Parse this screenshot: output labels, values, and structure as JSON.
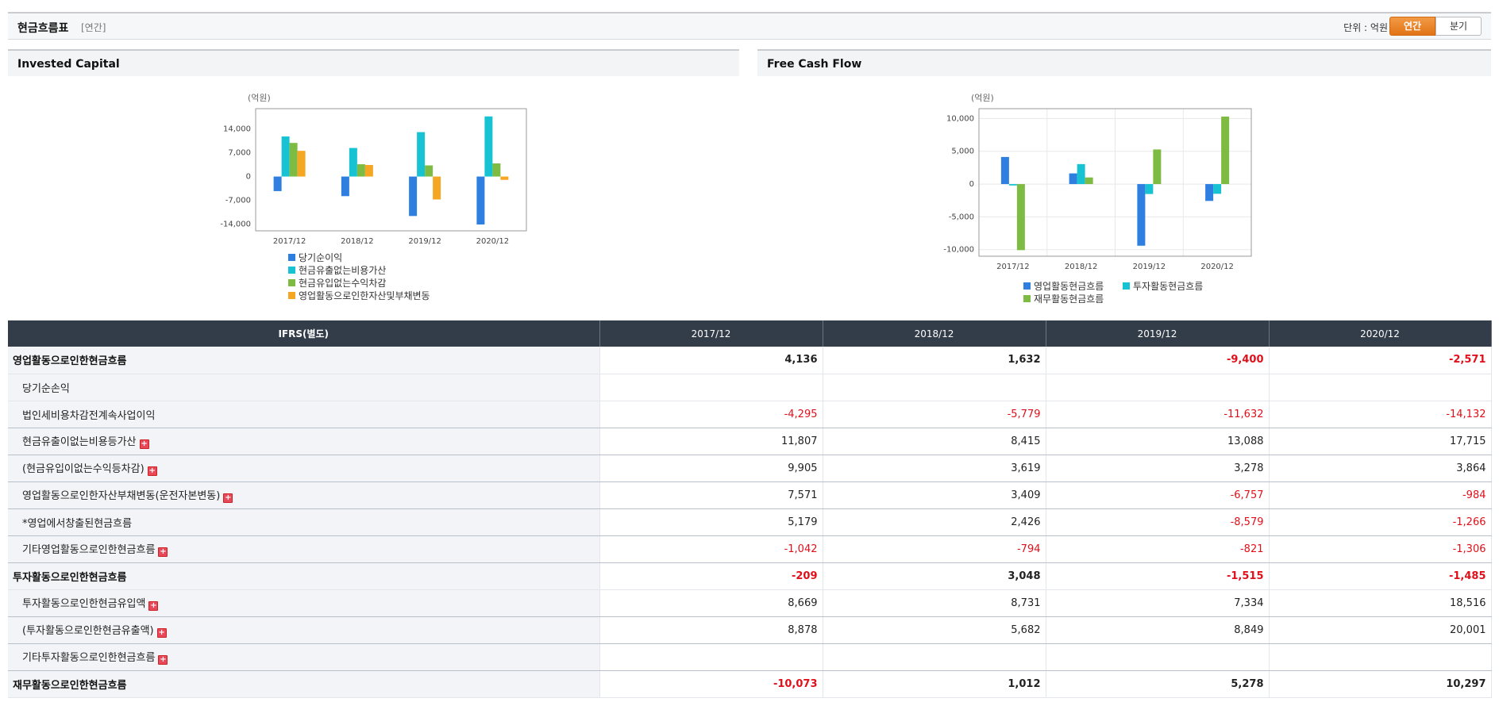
{
  "header": {
    "title": "현금흐름표",
    "subtitle": "[연간]",
    "unit_label": "단위 : 억원",
    "btn_annual": "연간",
    "btn_quarter": "분기"
  },
  "panels": {
    "ic_title": "Invested Capital",
    "fcf_title": "Free Cash Flow"
  },
  "chart_data": [
    {
      "type": "bar",
      "title": "Invested Capital",
      "unit": "(억원)",
      "categories": [
        "2017/12",
        "2018/12",
        "2019/12",
        "2020/12"
      ],
      "ylim": [
        -16000,
        20000
      ],
      "yticks": [
        14000,
        7000,
        0,
        -7000,
        -14000
      ],
      "ytick_labels": [
        "14,000",
        "7,000",
        "0",
        "-7,000",
        "-14,000"
      ],
      "grid": false,
      "legend_position": "bottom",
      "series": [
        {
          "name": "당기순이익",
          "color": "#2f7fe0",
          "values": [
            -4295,
            -5779,
            -11632,
            -14132
          ]
        },
        {
          "name": "현금유출없는비용가산",
          "color": "#17c3d2",
          "values": [
            11807,
            8415,
            13088,
            17715
          ]
        },
        {
          "name": "현금유입없는수익차감",
          "color": "#7dbb42",
          "values": [
            9905,
            3619,
            3278,
            3864
          ]
        },
        {
          "name": "영업활동으로인한자산및부채변동",
          "color": "#f5a623",
          "values": [
            7571,
            3409,
            -6757,
            -984
          ]
        }
      ]
    },
    {
      "type": "bar",
      "title": "Free Cash Flow",
      "unit": "(억원)",
      "categories": [
        "2017/12",
        "2018/12",
        "2019/12",
        "2020/12"
      ],
      "ylim": [
        -11000,
        11500
      ],
      "yticks": [
        10000,
        5000,
        0,
        -5000,
        -10000
      ],
      "ytick_labels": [
        "10,000",
        "5,000",
        "0",
        "-5,000",
        "-10,000"
      ],
      "grid": true,
      "legend_position": "bottom",
      "series": [
        {
          "name": "영업활동현금흐름",
          "color": "#2f7fe0",
          "values": [
            4136,
            1632,
            -9400,
            -2571
          ]
        },
        {
          "name": "투자활동현금흐름",
          "color": "#17c3d2",
          "values": [
            -209,
            3048,
            -1515,
            -1485
          ]
        },
        {
          "name": "재무활동현금흐름",
          "color": "#7dbb42",
          "values": [
            -10073,
            1012,
            5278,
            10297
          ]
        }
      ]
    }
  ],
  "table": {
    "headers": [
      "IFRS(별도)",
      "2017/12",
      "2018/12",
      "2019/12",
      "2020/12"
    ],
    "rows": [
      {
        "label": "영업활동으로인한현금흐름",
        "values": [
          "4,136",
          "1,632",
          "-9,400",
          "-2,571"
        ]
      },
      {
        "label": "당기순손익",
        "values": [
          "",
          "",
          "",
          ""
        ]
      },
      {
        "label": "법인세비용차감전계속사업이익",
        "values": [
          "-4,295",
          "-5,779",
          "-11,632",
          "-14,132"
        ]
      },
      {
        "label": "현금유출이없는비용등가산",
        "values": [
          "11,807",
          "8,415",
          "13,088",
          "17,715"
        ]
      },
      {
        "label": "(현금유입이없는수익등차감)",
        "values": [
          "9,905",
          "3,619",
          "3,278",
          "3,864"
        ]
      },
      {
        "label": "영업활동으로인한자산부채변동(운전자본변동)",
        "values": [
          "7,571",
          "3,409",
          "-6,757",
          "-984"
        ]
      },
      {
        "label": "*영업에서창출된현금흐름",
        "values": [
          "5,179",
          "2,426",
          "-8,579",
          "-1,266"
        ]
      },
      {
        "label": "기타영업활동으로인한현금흐름",
        "values": [
          "-1,042",
          "-794",
          "-821",
          "-1,306"
        ]
      },
      {
        "label": "투자활동으로인한현금흐름",
        "values": [
          "-209",
          "3,048",
          "-1,515",
          "-1,485"
        ]
      },
      {
        "label": "투자활동으로인한현금유입액",
        "values": [
          "8,669",
          "8,731",
          "7,334",
          "18,516"
        ]
      },
      {
        "label": "(투자활동으로인한현금유출액)",
        "values": [
          "8,878",
          "5,682",
          "8,849",
          "20,001"
        ]
      },
      {
        "label": "기타투자활동으로인한현금흐름",
        "values": [
          "",
          "",
          "",
          ""
        ]
      },
      {
        "label": "재무활동으로인한현금흐름",
        "values": [
          "-10,073",
          "1,012",
          "5,278",
          "10,297"
        ]
      }
    ],
    "expand_icon": "+"
  }
}
